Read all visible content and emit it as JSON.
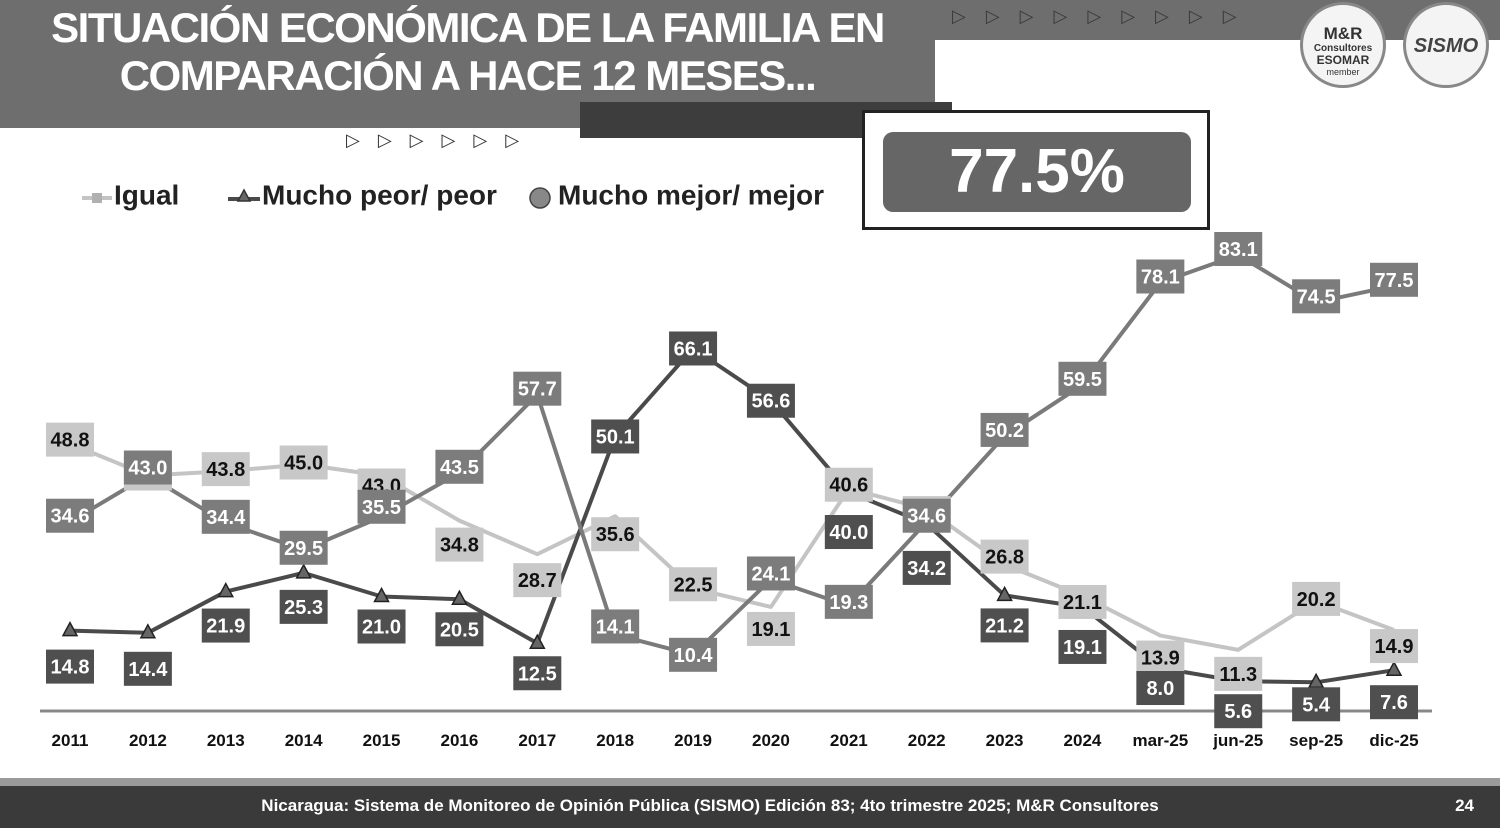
{
  "header": {
    "title_line1": "SITUACIÓN ECONÓMICA DE LA FAMILIA EN",
    "title_line2": "COMPARACIÓN A HACE 12 MESES...",
    "highlight_value": "77.5%"
  },
  "logos": {
    "mr_line1": "M&R",
    "mr_line2": "Consultores",
    "mr_line3": "ESOMAR",
    "mr_line4": "member",
    "sismo": "SISMO"
  },
  "footer": {
    "source": "Nicaragua: Sistema de Monitoreo de Opinión Pública (SISMO) Edición 83; 4to trimestre 2025; M&R Consultores",
    "page": "24"
  },
  "colors": {
    "igual": "#c4c4c4",
    "peor": "#4a4a4a",
    "mejor": "#7a7a7a"
  },
  "chart_data": {
    "type": "line",
    "title": "",
    "categories": [
      "2011",
      "2012",
      "2013",
      "2014",
      "2015",
      "2016",
      "2017",
      "2018",
      "2019",
      "2020",
      "2021",
      "2022",
      "2023",
      "2024",
      "mar-25",
      "jun-25",
      "sep-25",
      "dic-25"
    ],
    "series": [
      {
        "name": "Igual",
        "values": [
          48.8,
          43.0,
          43.8,
          45.0,
          43.0,
          34.8,
          28.7,
          35.6,
          22.5,
          19.1,
          40.6,
          36.9,
          26.8,
          21.1,
          13.9,
          11.3,
          20.2,
          14.9
        ]
      },
      {
        "name": "Mucho peor/ peor",
        "values": [
          14.8,
          14.4,
          21.9,
          25.3,
          21.0,
          20.5,
          12.5,
          50.1,
          66.1,
          56.6,
          40.0,
          34.2,
          21.2,
          19.1,
          8.0,
          5.6,
          5.4,
          7.6
        ]
      },
      {
        "name": "Mucho mejor/ mejor",
        "values": [
          34.6,
          43.0,
          34.4,
          29.5,
          35.5,
          43.5,
          57.7,
          14.1,
          10.4,
          24.1,
          19.3,
          34.6,
          50.2,
          59.5,
          78.1,
          83.1,
          74.5,
          77.5
        ]
      }
    ],
    "ylim": [
      0,
      90
    ],
    "legend": "top-left",
    "grid": false
  }
}
